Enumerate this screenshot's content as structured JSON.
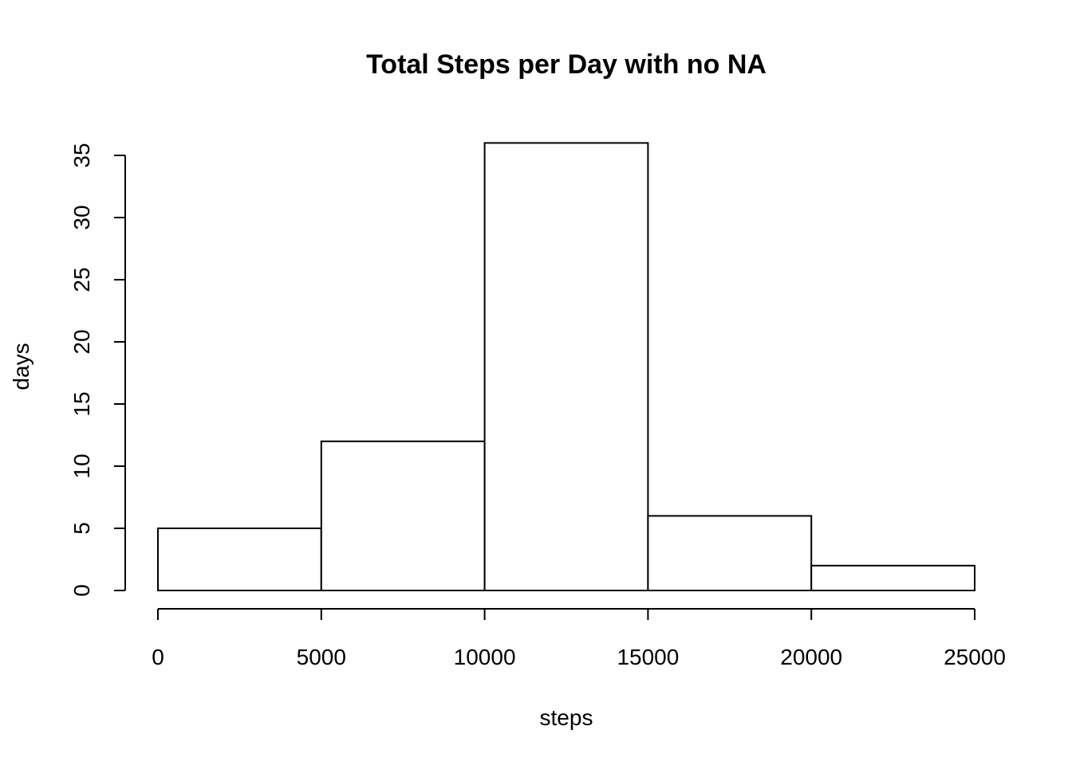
{
  "chart_data": {
    "type": "bar",
    "title": "Total Steps per Day with no NA",
    "xlabel": "steps",
    "ylabel": "days",
    "bins": [
      {
        "from": 0,
        "to": 5000,
        "count": 5
      },
      {
        "from": 5000,
        "to": 10000,
        "count": 12
      },
      {
        "from": 10000,
        "to": 15000,
        "count": 36
      },
      {
        "from": 15000,
        "to": 20000,
        "count": 6
      },
      {
        "from": 20000,
        "to": 25000,
        "count": 2
      }
    ],
    "xlim": [
      0,
      25000
    ],
    "ylim": [
      0,
      36
    ],
    "x_ticks": [
      "0",
      "5000",
      "10000",
      "15000",
      "20000",
      "25000"
    ],
    "y_ticks": [
      "0",
      "5",
      "10",
      "15",
      "20",
      "25",
      "30",
      "35"
    ],
    "grid": false,
    "bar_fill": "#ffffff",
    "bar_stroke": "#000000"
  }
}
